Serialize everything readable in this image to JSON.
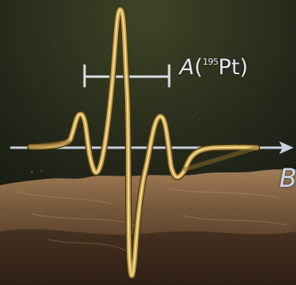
{
  "colors": {
    "sky_top": "#1c2016",
    "sky_glow": "#3e4526",
    "terrain_light": "#a5815a",
    "terrain_dark": "#3a281a",
    "spectrum_gold": "#c9a24a",
    "spectrum_highlight": "#fff1b8",
    "axis": "#c8d0da",
    "bracket": "#d8dde4"
  },
  "labels": {
    "coupling_letter": "A",
    "coupling_open": "(",
    "isotope_mass": "195",
    "isotope_element": "Pt",
    "coupling_close": ")",
    "field_axis": "B"
  },
  "icons": {
    "axis_arrow": "arrow-right-icon",
    "bracket": "hyperfine-splitting-bracket"
  }
}
